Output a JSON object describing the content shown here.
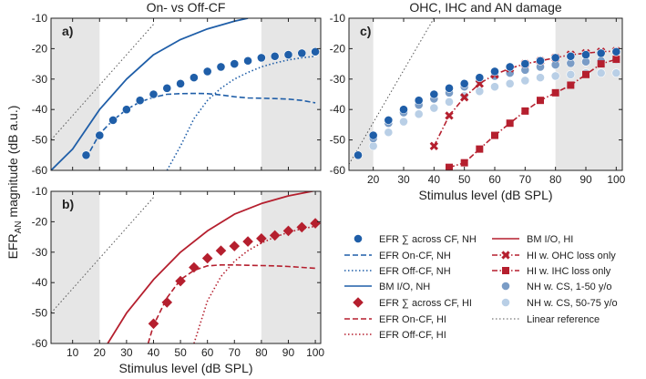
{
  "figure": {
    "ylabel_main": "EFR",
    "ylabel_sub": "AN",
    "ylabel_rest": " magnitude (dB a.u.)",
    "title_left": "On- vs Off-CF",
    "title_right": "OHC, IHC and AN damage"
  },
  "colors": {
    "nh": "#1f5ea8",
    "hi": "#b51f2e",
    "cs1": "#7a9cc6",
    "cs2": "#b9cfe6",
    "linear": "#555555",
    "shade": "#e6e6e6"
  },
  "chart_data": [
    {
      "type": "line",
      "panel": "a)",
      "xlim": [
        2,
        102
      ],
      "ylim": [
        -60,
        -10
      ],
      "xticks": [],
      "yticks": [
        -60,
        -50,
        -40,
        -30,
        -20,
        -10
      ],
      "xlabel": "",
      "shaded_x": [
        [
          2,
          20
        ],
        [
          80,
          102
        ]
      ],
      "series": [
        {
          "name": "Linear reference",
          "style": "dotted",
          "color": "linear",
          "x": [
            2,
            40
          ],
          "y": [
            -50,
            -12
          ]
        },
        {
          "name": "BM I/O, NH",
          "style": "solid",
          "color": "nh",
          "x": [
            2,
            10,
            20,
            30,
            40,
            50,
            60,
            70,
            75
          ],
          "y": [
            -60,
            -53,
            -40,
            -30,
            -22,
            -17,
            -13.5,
            -11,
            -10
          ]
        },
        {
          "name": "EFR On-CF, NH",
          "style": "dashed",
          "color": "nh",
          "x": [
            15,
            20,
            25,
            30,
            35,
            40,
            45,
            50,
            55,
            60,
            65,
            70,
            75,
            80,
            85,
            90,
            95,
            100
          ],
          "y": [
            -56,
            -48,
            -43.5,
            -40,
            -37.5,
            -36,
            -35,
            -34.8,
            -34.7,
            -34.8,
            -35.2,
            -35.8,
            -36.2,
            -36.3,
            -36.4,
            -36.6,
            -37,
            -37.8
          ]
        },
        {
          "name": "EFR Off-CF, NH",
          "style": "dotted",
          "color": "nh",
          "x": [
            45,
            50,
            55,
            60,
            65,
            70,
            75,
            80,
            85,
            90,
            95,
            100
          ],
          "y": [
            -60,
            -52,
            -43,
            -37,
            -33,
            -30,
            -27.8,
            -26,
            -24.7,
            -23.7,
            -23,
            -22.5
          ]
        },
        {
          "name": "EFR ∑ across CF, NH",
          "style": "markers",
          "marker": "circle",
          "color": "nh",
          "x": [
            15,
            20,
            25,
            30,
            35,
            40,
            45,
            50,
            55,
            60,
            65,
            70,
            75,
            80,
            85,
            90,
            95,
            100
          ],
          "y": [
            -55,
            -48.5,
            -43.5,
            -40,
            -37,
            -35,
            -33,
            -31.5,
            -29.5,
            -27.5,
            -26,
            -25,
            -24,
            -23,
            -22.5,
            -22,
            -21.5,
            -21
          ]
        }
      ]
    },
    {
      "type": "line",
      "panel": "b)",
      "xlim": [
        2,
        102
      ],
      "ylim": [
        -60,
        -10
      ],
      "xticks": [
        10,
        20,
        30,
        40,
        50,
        60,
        70,
        80,
        90,
        100
      ],
      "yticks": [
        -60,
        -50,
        -40,
        -30,
        -20,
        -10
      ],
      "xlabel": "Stimulus level (dB SPL)",
      "shaded_x": [
        [
          2,
          20
        ],
        [
          80,
          102
        ]
      ],
      "series": [
        {
          "name": "Linear reference",
          "style": "dotted",
          "color": "linear",
          "x": [
            2,
            40
          ],
          "y": [
            -50,
            -12
          ]
        },
        {
          "name": "BM I/O, HI",
          "style": "solid",
          "color": "hi",
          "x": [
            23,
            30,
            40,
            50,
            60,
            70,
            80,
            90,
            100
          ],
          "y": [
            -60,
            -50,
            -39,
            -30,
            -23,
            -17.5,
            -14,
            -11.5,
            -9.8
          ]
        },
        {
          "name": "EFR On-CF, HI",
          "style": "dashed",
          "color": "hi",
          "x": [
            38,
            40,
            45,
            50,
            55,
            60,
            65,
            70,
            75,
            80,
            85,
            90,
            95,
            100
          ],
          "y": [
            -60,
            -54,
            -45,
            -39,
            -36,
            -34.5,
            -34.2,
            -34.2,
            -34.3,
            -34.4,
            -34.5,
            -34.7,
            -35,
            -35.3
          ]
        },
        {
          "name": "EFR Off-CF, HI",
          "style": "dotted",
          "color": "hi",
          "x": [
            55,
            60,
            65,
            70,
            75,
            80,
            85,
            90,
            95,
            100
          ],
          "y": [
            -60,
            -46,
            -38,
            -33,
            -29.5,
            -27,
            -25,
            -23.5,
            -22.3,
            -21.5
          ]
        },
        {
          "name": "EFR ∑ across CF, HI",
          "style": "markers",
          "marker": "diamond",
          "color": "hi",
          "x": [
            40,
            45,
            50,
            55,
            60,
            65,
            70,
            75,
            80,
            85,
            90,
            95,
            100
          ],
          "y": [
            -53.5,
            -46.5,
            -39.5,
            -35,
            -32,
            -29.5,
            -28,
            -26.5,
            -25.5,
            -24.5,
            -23,
            -21.8,
            -20.5
          ]
        }
      ]
    },
    {
      "type": "line",
      "panel": "c)",
      "xlim": [
        12,
        102
      ],
      "ylim": [
        -60,
        -10
      ],
      "xticks": [
        20,
        30,
        40,
        50,
        60,
        70,
        80,
        90,
        100
      ],
      "yticks": [
        -60,
        -50,
        -40,
        -30,
        -20,
        -10
      ],
      "xlabel": "Stimulus level (dB SPL)",
      "shaded_x": [
        [
          12,
          20
        ],
        [
          80,
          102
        ]
      ],
      "series": [
        {
          "name": "Linear reference",
          "style": "dotted",
          "color": "linear",
          "x": [
            12,
            40
          ],
          "y": [
            -58,
            -10
          ]
        },
        {
          "name": "NH w. CS, 50-75 y/o",
          "style": "markers",
          "marker": "circle",
          "color": "cs2",
          "x": [
            20,
            25,
            30,
            35,
            40,
            45,
            50,
            55,
            60,
            65,
            70,
            75,
            80,
            85,
            90,
            95,
            100
          ],
          "y": [
            -52,
            -47.5,
            -44,
            -41.5,
            -39.5,
            -37.5,
            -35.5,
            -34,
            -32.5,
            -31.5,
            -30.5,
            -29.5,
            -29,
            -28.5,
            -28,
            -28,
            -28
          ]
        },
        {
          "name": "NH w. CS, 1-50 y/o",
          "style": "markers",
          "marker": "circle",
          "color": "cs1",
          "x": [
            20,
            25,
            30,
            35,
            40,
            45,
            50,
            55,
            60,
            65,
            70,
            75,
            80,
            85,
            90,
            95,
            100
          ],
          "y": [
            -49.5,
            -44.5,
            -41,
            -38.5,
            -36.5,
            -34.5,
            -32.5,
            -30.5,
            -29,
            -28,
            -27,
            -26,
            -25.3,
            -24.8,
            -24.3,
            -24,
            -23.5
          ]
        },
        {
          "name": "HI w. OHC loss only",
          "style": "dashdot-markers",
          "marker": "x",
          "color": "hi",
          "x": [
            40,
            45,
            50,
            55,
            60,
            65,
            70,
            75,
            80,
            85,
            90,
            95,
            100
          ],
          "y": [
            -52,
            -42,
            -36,
            -31.5,
            -28.5,
            -26.5,
            -25,
            -24,
            -23,
            -22,
            -21.5,
            -21,
            -20.8
          ]
        },
        {
          "name": "HI w. IHC loss only",
          "style": "dashdot-markers",
          "marker": "square",
          "color": "hi",
          "x": [
            45,
            50,
            55,
            60,
            65,
            70,
            75,
            80,
            85,
            90,
            95,
            100
          ],
          "y": [
            -59,
            -57.5,
            -53,
            -48.5,
            -44.5,
            -40.5,
            -37,
            -34.5,
            -32,
            -28.5,
            -25,
            -23.5
          ]
        },
        {
          "name": "EFR ∑ across CF, NH",
          "style": "markers",
          "marker": "circle",
          "color": "nh",
          "x": [
            15,
            20,
            25,
            30,
            35,
            40,
            45,
            50,
            55,
            60,
            65,
            70,
            75,
            80,
            85,
            90,
            95,
            100
          ],
          "y": [
            -55,
            -48.5,
            -43.5,
            -40,
            -37,
            -35,
            -33,
            -31.5,
            -29.5,
            -27.5,
            -26,
            -25,
            -24,
            -23,
            -22.5,
            -22,
            -21.5,
            -21
          ]
        }
      ]
    }
  ],
  "legend": [
    {
      "label": "EFR ∑ across CF, NH",
      "style": "circle",
      "color": "nh"
    },
    {
      "label": "EFR On-CF, NH",
      "style": "dashed",
      "color": "nh"
    },
    {
      "label": "EFR Off-CF, NH",
      "style": "dotted",
      "color": "nh"
    },
    {
      "label": "BM I/O, NH",
      "style": "solid",
      "color": "nh"
    },
    {
      "label": "EFR ∑ across CF, HI",
      "style": "diamond",
      "color": "hi"
    },
    {
      "label": "EFR On-CF, HI",
      "style": "dashed",
      "color": "hi"
    },
    {
      "label": "EFR Off-CF, HI",
      "style": "dotted",
      "color": "hi"
    },
    {
      "label": "BM I/O, HI",
      "style": "solid",
      "color": "hi"
    },
    {
      "label": "HI w. OHC loss only",
      "style": "x-dashdot",
      "color": "hi"
    },
    {
      "label": "HI w. IHC loss only",
      "style": "square-dashdot",
      "color": "hi"
    },
    {
      "label": "NH w. CS, 1-50 y/o",
      "style": "circle",
      "color": "cs1"
    },
    {
      "label": "NH w. CS, 50-75 y/o",
      "style": "circle",
      "color": "cs2"
    },
    {
      "label": "Linear reference",
      "style": "dotted",
      "color": "linear"
    }
  ]
}
